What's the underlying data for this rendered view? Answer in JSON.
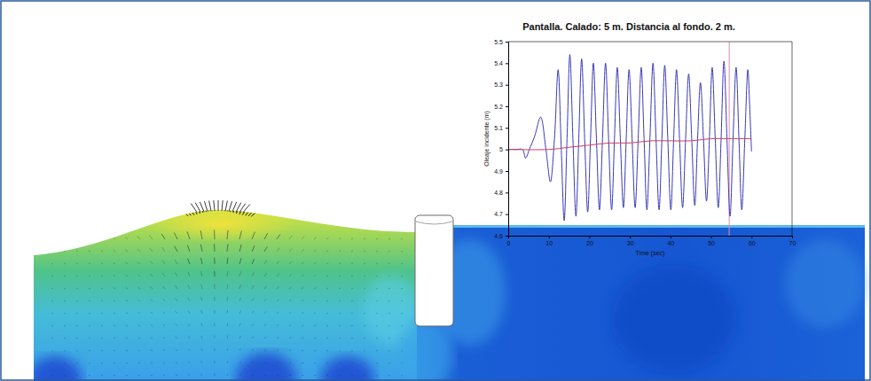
{
  "chart_data": {
    "type": "line",
    "title": "Pantalla. Calado: 5 m. Distancia al fondo. 2 m.",
    "x_label": "Time (sec)",
    "y_label": "Oleaje incidente (m)",
    "xlim": [
      0,
      70
    ],
    "xticks": [
      0,
      10,
      20,
      30,
      40,
      50,
      60,
      70
    ],
    "ylim": [
      4.6,
      5.5
    ],
    "yticks": [
      4.6,
      4.7,
      4.8,
      4.9,
      5,
      5.1,
      5.2,
      5.3,
      5.4,
      5.5
    ],
    "grid": false,
    "series": [
      {
        "color": "#3a3ab8",
        "x": [
          0,
          2,
          3.5,
          4.3,
          5.2,
          6.5,
          8,
          9.3,
          10.4,
          11.4,
          12.3,
          13.05,
          13.8,
          14.5,
          15.2,
          15.95,
          16.7,
          17.4,
          18.1,
          18.85,
          19.6,
          20.3,
          21.0,
          21.75,
          22.5,
          23.25,
          24.0,
          24.75,
          25.5,
          26.2,
          26.9,
          27.65,
          28.4,
          29.1,
          29.8,
          30.55,
          31.3,
          32.05,
          32.8,
          33.5,
          34.2,
          34.95,
          35.7,
          36.45,
          37.2,
          37.9,
          38.6,
          39.35,
          40.1,
          40.8,
          41.5,
          42.25,
          43.0,
          43.75,
          44.5,
          45.25,
          46.0,
          46.7,
          47.4,
          48.15,
          48.9,
          49.6,
          50.3,
          51.05,
          51.8,
          52.5,
          53.2,
          53.95,
          54.7,
          55.45,
          56.2,
          56.9,
          57.6,
          58.35,
          59.1,
          59.55,
          60.0
        ],
        "values": [
          5,
          5,
          5.0,
          4.96,
          5.0,
          5.06,
          5.15,
          5.0,
          4.85,
          5.05,
          5.37,
          5.02,
          4.67,
          5.05,
          5.44,
          5.05,
          4.69,
          5.05,
          5.42,
          5.05,
          4.71,
          5.05,
          5.4,
          5.05,
          4.72,
          5.05,
          5.4,
          5.05,
          4.72,
          5.05,
          5.38,
          5.05,
          4.73,
          5.05,
          5.37,
          5.05,
          4.73,
          5.05,
          5.38,
          5.05,
          4.72,
          5.05,
          5.4,
          5.05,
          4.72,
          5.05,
          5.39,
          5.05,
          4.72,
          5.05,
          5.37,
          5.05,
          4.73,
          5.05,
          5.35,
          5.05,
          4.74,
          5.05,
          5.31,
          5.05,
          4.76,
          5.04,
          5.38,
          5.05,
          4.73,
          5.05,
          5.41,
          5.05,
          4.69,
          5.05,
          5.38,
          5.05,
          4.72,
          5.05,
          5.37,
          5.2,
          4.99
        ]
      },
      {
        "color": "#d0405a",
        "x": [
          0,
          10,
          15,
          20,
          25,
          30,
          35,
          40,
          45,
          50,
          55,
          60
        ],
        "values": [
          5,
          5,
          5.01,
          5.02,
          5.03,
          5.03,
          5.04,
          5.04,
          5.04,
          5.05,
          5.05,
          5.05
        ]
      }
    ],
    "vertical_line": {
      "x": 54.5,
      "color": "#e88aa8"
    }
  }
}
